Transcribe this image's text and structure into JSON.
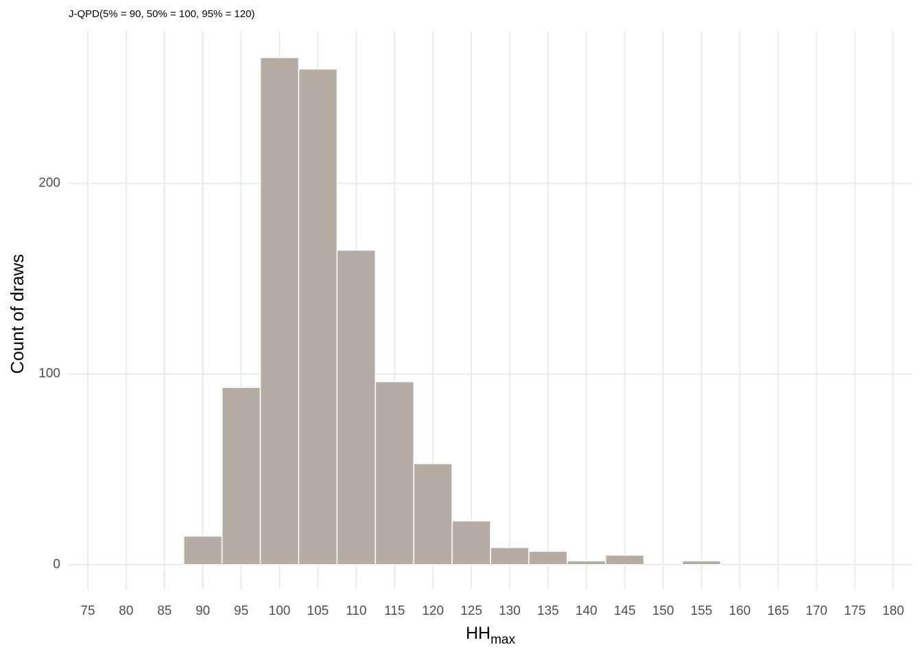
{
  "chart_data": {
    "type": "histogram",
    "title": "J-QPD(5% = 90, 50% = 100, 95% = 120)",
    "xlabel": "HH",
    "xlabel_sub": "max",
    "ylabel": "Count of draws",
    "bins": [
      77.5,
      82.5,
      87.5,
      92.5,
      97.5,
      102.5,
      107.5,
      112.5,
      117.5,
      122.5,
      127.5,
      132.5,
      137.5,
      142.5,
      147.5,
      152.5,
      157.5,
      162.5,
      167.5,
      172.5,
      177.5
    ],
    "counts": [
      0,
      0,
      15,
      93,
      266,
      260,
      165,
      96,
      53,
      23,
      9,
      7,
      2,
      5,
      0,
      2,
      0,
      0,
      0,
      0
    ],
    "color": "#b5ada3",
    "xlim": [
      72.5,
      182.5
    ],
    "xticks": [
      75,
      80,
      85,
      90,
      95,
      100,
      105,
      110,
      115,
      120,
      125,
      130,
      135,
      140,
      145,
      150,
      155,
      160,
      165,
      170,
      175,
      180
    ],
    "ylim": [
      -13,
      280
    ],
    "yticks": [
      0,
      100,
      200
    ],
    "grid": true
  }
}
